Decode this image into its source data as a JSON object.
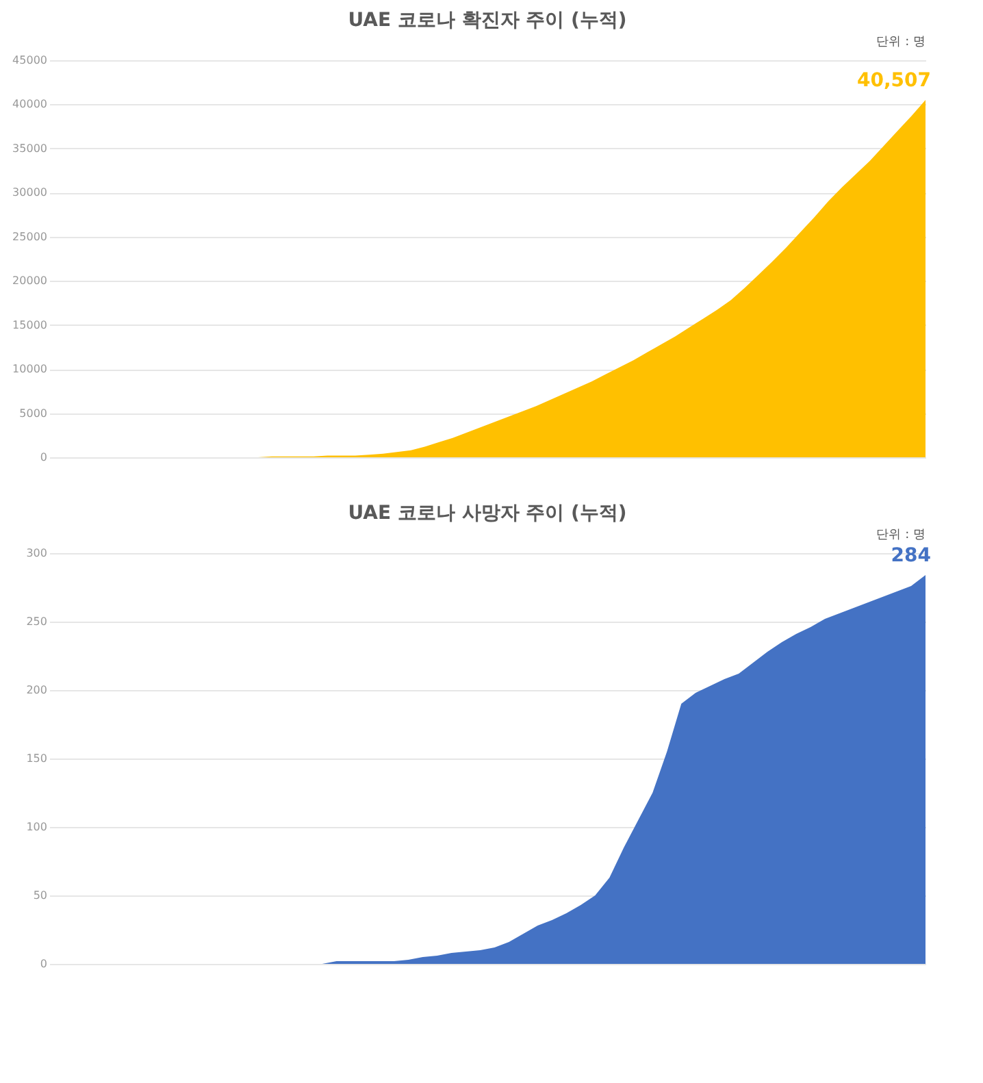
{
  "chart_data": [
    {
      "type": "area",
      "title": "UAE 코로나 확진자 주이 (누적)",
      "annotations": [
        "단위 : 명"
      ],
      "tick_labels": "y",
      "grid": "y",
      "categories": [
        null,
        null,
        null,
        null,
        null,
        null,
        null,
        null,
        null,
        null,
        null,
        null,
        null,
        null,
        null,
        null,
        null,
        null,
        null,
        null,
        null,
        null,
        null,
        null,
        null,
        null,
        null,
        null,
        null,
        null,
        null,
        null,
        null,
        null,
        null,
        null,
        null,
        null,
        null,
        null,
        null,
        null,
        null,
        null,
        null,
        null,
        null,
        null,
        null,
        null,
        null,
        null,
        null,
        null,
        null,
        null,
        null,
        null,
        null,
        null,
        null,
        null,
        null,
        null
      ],
      "ylim": [
        0,
        45000
      ],
      "yticks": [
        0,
        5000,
        10000,
        15000,
        20000,
        25000,
        30000,
        35000,
        40000,
        45000
      ],
      "series": [
        {
          "color": "#ffc000",
          "values": [
            0,
            0,
            0,
            0,
            0,
            0,
            0,
            0,
            0,
            0,
            0,
            0,
            0,
            0,
            0,
            0,
            100,
            100,
            100,
            100,
            200,
            200,
            200,
            300,
            400,
            600,
            800,
            1200,
            1700,
            2200,
            2800,
            3400,
            4000,
            4600,
            5200,
            5800,
            6500,
            7200,
            7900,
            8600,
            9400,
            10200,
            11000,
            11900,
            12800,
            13700,
            14700,
            15700,
            16700,
            17800,
            19200,
            20700,
            22200,
            23800,
            25500,
            27200,
            29000,
            30600,
            32100,
            33600,
            35300,
            37000,
            38700,
            40507
          ],
          "value_labels": [
            null,
            null,
            null,
            null,
            null,
            null,
            null,
            null,
            null,
            null,
            null,
            null,
            null,
            null,
            null,
            null,
            null,
            null,
            null,
            null,
            null,
            null,
            null,
            null,
            null,
            null,
            null,
            null,
            null,
            null,
            null,
            null,
            null,
            null,
            null,
            null,
            null,
            null,
            null,
            null,
            null,
            null,
            null,
            null,
            null,
            null,
            null,
            null,
            null,
            null,
            null,
            null,
            null,
            null,
            null,
            null,
            null,
            null,
            null,
            null,
            null,
            null,
            null,
            "40,507"
          ]
        }
      ]
    },
    {
      "type": "area",
      "title": "UAE 코로나 사망자 주이 (누적)",
      "annotations": [
        "단위 : 명"
      ],
      "tick_labels": "y",
      "grid": "y",
      "categories": [
        null,
        null,
        null,
        null,
        null,
        null,
        null,
        null,
        null,
        null,
        null,
        null,
        null,
        null,
        null,
        null,
        null,
        null,
        null,
        null,
        null,
        null,
        null,
        null,
        null,
        null,
        null,
        null,
        null,
        null,
        null,
        null,
        null,
        null,
        null,
        null,
        null,
        null,
        null,
        null,
        null,
        null,
        null,
        null,
        null,
        null,
        null,
        null,
        null,
        null,
        null,
        null,
        null,
        null,
        null,
        null,
        null,
        null,
        null,
        null,
        null,
        null
      ],
      "ylim": [
        0,
        300
      ],
      "yticks": [
        0,
        50,
        100,
        150,
        200,
        250,
        300
      ],
      "series": [
        {
          "color": "#4472c4",
          "values": [
            0,
            0,
            0,
            0,
            0,
            0,
            0,
            0,
            0,
            0,
            0,
            0,
            0,
            0,
            0,
            0,
            0,
            0,
            0,
            0,
            2,
            2,
            2,
            2,
            2,
            3,
            5,
            6,
            8,
            9,
            10,
            12,
            16,
            22,
            28,
            32,
            37,
            43,
            50,
            63,
            85,
            105,
            125,
            155,
            190,
            198,
            203,
            208,
            212,
            220,
            228,
            235,
            241,
            246,
            252,
            256,
            260,
            264,
            268,
            272,
            276,
            284
          ],
          "value_labels": [
            null,
            null,
            null,
            null,
            null,
            null,
            null,
            null,
            null,
            null,
            null,
            null,
            null,
            null,
            null,
            null,
            null,
            null,
            null,
            null,
            null,
            null,
            null,
            null,
            null,
            null,
            null,
            null,
            null,
            null,
            null,
            null,
            null,
            null,
            null,
            null,
            null,
            null,
            null,
            null,
            null,
            null,
            null,
            null,
            null,
            null,
            null,
            null,
            null,
            null,
            null,
            null,
            null,
            null,
            null,
            null,
            null,
            null,
            null,
            null,
            null,
            "284"
          ]
        }
      ]
    }
  ]
}
